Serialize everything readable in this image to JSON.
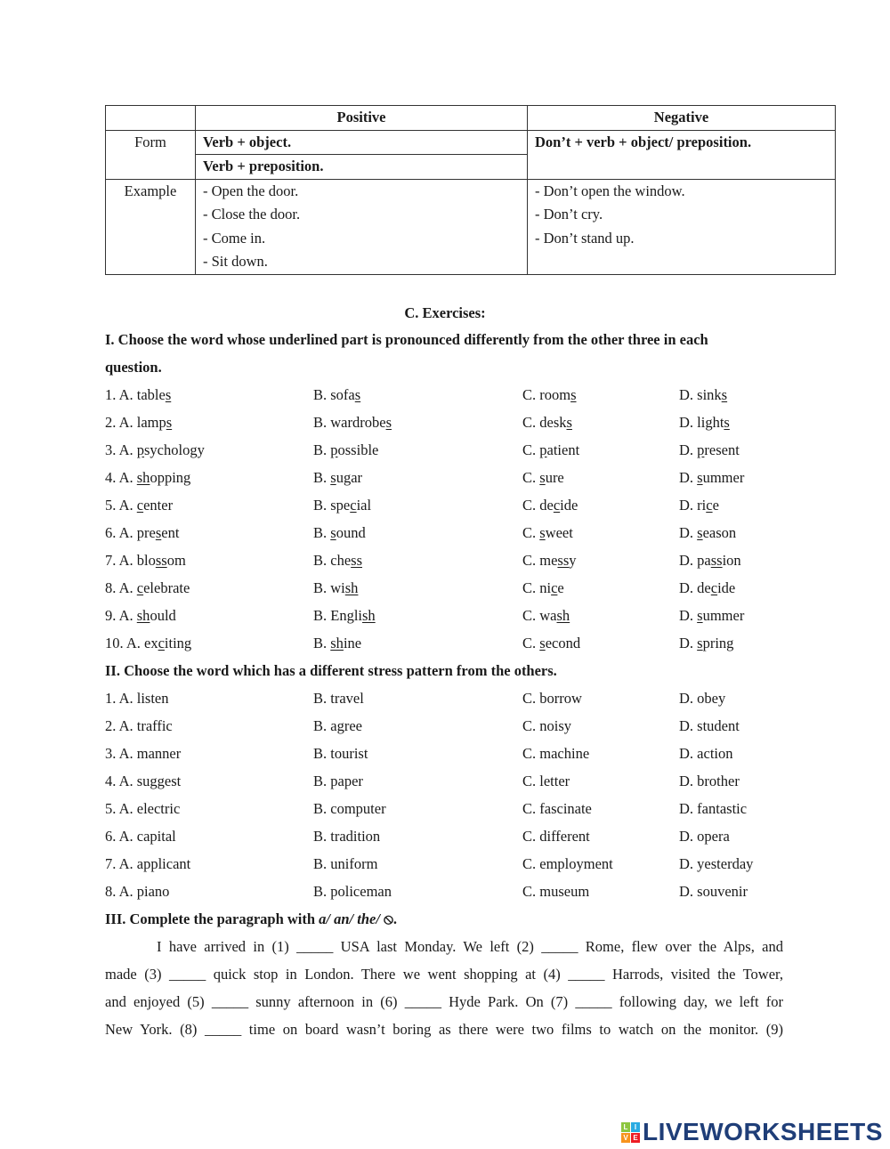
{
  "table": {
    "headers": [
      "",
      "Positive",
      "Negative"
    ],
    "form_label": "Form",
    "form_positive": [
      "Verb + object.",
      "Verb + preposition."
    ],
    "form_negative": "Don’t + verb + object/ preposition.",
    "example_label": "Example",
    "example_positive": [
      "- Open the door.",
      "- Close the door.",
      "- Come in.",
      "- Sit down."
    ],
    "example_negative": [
      "- Don’t open the window.",
      "- Don’t cry.",
      "- Don’t stand up."
    ]
  },
  "section_title": "C. Exercises:",
  "ex1": {
    "title_lines": [
      "I. Choose the word whose underlined part is pronounced differently from the other three in each",
      "question."
    ],
    "items": [
      [
        [
          "1. A. table",
          "s",
          ""
        ],
        [
          "B. sofa",
          "s",
          ""
        ],
        [
          "C. room",
          "s",
          ""
        ],
        [
          "D. sink",
          "s",
          ""
        ]
      ],
      [
        [
          "2. A. lamp",
          "s",
          ""
        ],
        [
          "B. wardrobe",
          "s",
          ""
        ],
        [
          "C. desk",
          "s",
          ""
        ],
        [
          "D. light",
          "s",
          ""
        ]
      ],
      [
        [
          "3. A. ",
          "p",
          "sychology"
        ],
        [
          "B. ",
          "p",
          "ossible"
        ],
        [
          "C. ",
          "p",
          "atient"
        ],
        [
          "D. ",
          "p",
          "resent"
        ]
      ],
      [
        [
          "4. A. ",
          "sh",
          "opping"
        ],
        [
          "B. ",
          "s",
          "ugar"
        ],
        [
          "C. ",
          "s",
          "ure"
        ],
        [
          "D. ",
          "s",
          "ummer"
        ]
      ],
      [
        [
          "5. A. ",
          "c",
          "enter"
        ],
        [
          "B. spe",
          "c",
          "ial"
        ],
        [
          "C. de",
          "c",
          "ide"
        ],
        [
          "D. ri",
          "c",
          "e"
        ]
      ],
      [
        [
          "6. A. pre",
          "s",
          "ent"
        ],
        [
          "B. ",
          "s",
          "ound"
        ],
        [
          "C. ",
          "s",
          "weet"
        ],
        [
          "D. ",
          "s",
          "eason"
        ]
      ],
      [
        [
          "7. A. blo",
          "ss",
          "om"
        ],
        [
          "B. che",
          "ss",
          ""
        ],
        [
          "C. me",
          "ss",
          "y"
        ],
        [
          "D. pa",
          "ss",
          "ion"
        ]
      ],
      [
        [
          "8. A. ",
          "c",
          "elebrate"
        ],
        [
          "B. wi",
          "sh",
          ""
        ],
        [
          "C. ni",
          "c",
          "e"
        ],
        [
          "D. de",
          "c",
          "ide"
        ]
      ],
      [
        [
          "9. A. ",
          "sh",
          "ould"
        ],
        [
          "B. Engli",
          "sh",
          ""
        ],
        [
          "C. wa",
          "sh",
          ""
        ],
        [
          "D. ",
          "s",
          "ummer"
        ]
      ],
      [
        [
          "10. A. ex",
          "c",
          "iting"
        ],
        [
          "B. ",
          "sh",
          "ine"
        ],
        [
          "C. ",
          "s",
          "econd"
        ],
        [
          "D. ",
          "s",
          "pring"
        ]
      ]
    ]
  },
  "ex2": {
    "title": "II. Choose the word which has a different stress pattern from the others.",
    "items": [
      [
        "1. A. listen",
        "B. travel",
        "C. borrow",
        "D. obey"
      ],
      [
        "2. A. traffic",
        "B. agree",
        "C. noisy",
        "D. student"
      ],
      [
        "3. A. manner",
        "B. tourist",
        "C. machine",
        "D. action"
      ],
      [
        "4. A. suggest",
        "B. paper",
        "C. letter",
        "D. brother"
      ],
      [
        "5. A. electric",
        "B. computer",
        "C. fascinate",
        "D. fantastic"
      ],
      [
        "6. A. capital",
        "B. tradition",
        "C. different",
        "D. opera"
      ],
      [
        "7. A. applicant",
        "B. uniform",
        "C. employment",
        "D. yesterday"
      ],
      [
        "8. A. piano",
        "B. policeman",
        "C. museum",
        "D. souvenir"
      ]
    ]
  },
  "ex3": {
    "title_prefix": "III. Complete the paragraph with ",
    "title_italic": "a/ an/ the/ ",
    "title_symbol": "⦸",
    "title_end": ".",
    "lines": [
      "I have arrived in (1) _____ USA last Monday. We left (2) _____ Rome, flew over the Alps, and",
      "made (3) _____ quick stop in London. There we went shopping at (4) _____ Harrods, visited the Tower,",
      "and enjoyed (5) _____ sunny afternoon in (6) _____ Hyde Park. On (7) _____ following day, we left for",
      "New York. (8) _____ time on board wasn’t boring as there were two films to watch on the monitor. (9)"
    ]
  },
  "logo": {
    "blocks": [
      "L",
      "I",
      "V",
      "E"
    ],
    "block_colors": [
      "#8dc63f",
      "#29abe2",
      "#f7941d",
      "#ed1c24"
    ],
    "text": "LIVEWORKSHEETS",
    "color": "#1f3e78"
  }
}
